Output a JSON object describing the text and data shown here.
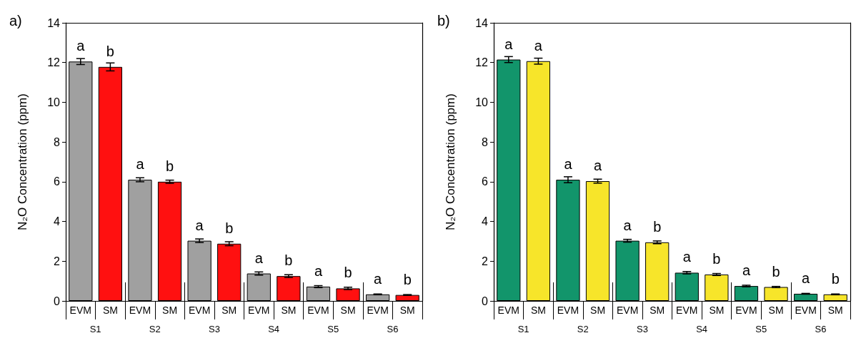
{
  "chart_data": [
    {
      "type": "bar",
      "title": "a)",
      "ylabel": "N₂O Concentration (ppm)",
      "categories": [
        "S1",
        "S2",
        "S3",
        "S4",
        "S5",
        "S6"
      ],
      "ylim": [
        0,
        14
      ],
      "yticks": [
        0,
        2,
        4,
        6,
        8,
        10,
        12,
        14
      ],
      "grid": false,
      "legend": "bottom",
      "series": [
        {
          "name": "EVM",
          "color": "#a0a0a0",
          "values": [
            12.05,
            6.1,
            3.03,
            1.38,
            0.72,
            0.33
          ],
          "errors": [
            0.15,
            0.1,
            0.09,
            0.08,
            0.05,
            0.02
          ],
          "value_labels": [
            "a",
            "a",
            "a",
            "a",
            "a",
            "a"
          ]
        },
        {
          "name": "SM",
          "color": "#ff1010",
          "values": [
            11.78,
            6.0,
            2.88,
            1.25,
            0.63,
            0.3
          ],
          "errors": [
            0.2,
            0.08,
            0.1,
            0.07,
            0.06,
            0.02
          ],
          "value_labels": [
            "b",
            "b",
            "b",
            "b",
            "b",
            "b"
          ]
        }
      ]
    },
    {
      "type": "bar",
      "title": "b)",
      "ylabel": "N₂O Concentration (ppm)",
      "categories": [
        "S1",
        "S2",
        "S3",
        "S4",
        "S5",
        "S6"
      ],
      "ylim": [
        0,
        14
      ],
      "yticks": [
        0,
        2,
        4,
        6,
        8,
        10,
        12,
        14
      ],
      "grid": false,
      "legend": "bottom",
      "series": [
        {
          "name": "EVM",
          "color": "#12956b",
          "values": [
            12.15,
            6.1,
            3.03,
            1.42,
            0.75,
            0.36
          ],
          "errors": [
            0.15,
            0.15,
            0.07,
            0.06,
            0.04,
            0.02
          ],
          "value_labels": [
            "a",
            "a",
            "a",
            "a",
            "a",
            "a"
          ]
        },
        {
          "name": "SM",
          "color": "#f7e52a",
          "values": [
            12.07,
            6.03,
            2.95,
            1.33,
            0.7,
            0.33
          ],
          "errors": [
            0.15,
            0.1,
            0.07,
            0.05,
            0.03,
            0.02
          ],
          "value_labels": [
            "a",
            "a",
            "b",
            "b",
            "b",
            "b"
          ]
        }
      ]
    }
  ]
}
